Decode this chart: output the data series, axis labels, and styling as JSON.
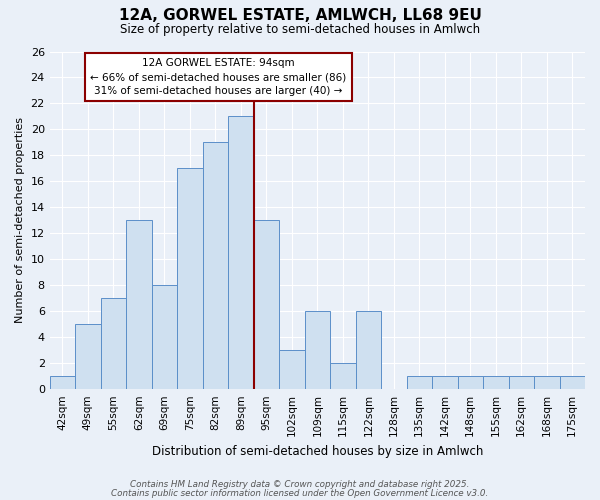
{
  "title": "12A, GORWEL ESTATE, AMLWCH, LL68 9EU",
  "subtitle": "Size of property relative to semi-detached houses in Amlwch",
  "xlabel": "Distribution of semi-detached houses by size in Amlwch",
  "ylabel": "Number of semi-detached properties",
  "categories": [
    "42sqm",
    "49sqm",
    "55sqm",
    "62sqm",
    "69sqm",
    "75sqm",
    "82sqm",
    "89sqm",
    "95sqm",
    "102sqm",
    "109sqm",
    "115sqm",
    "122sqm",
    "128sqm",
    "135sqm",
    "142sqm",
    "148sqm",
    "155sqm",
    "162sqm",
    "168sqm",
    "175sqm"
  ],
  "values": [
    1,
    5,
    7,
    13,
    8,
    17,
    19,
    21,
    13,
    3,
    6,
    2,
    6,
    0,
    1,
    1,
    1,
    1,
    1,
    1,
    1
  ],
  "bar_color": "#cfe0f0",
  "bar_edge_color": "#5b8fc9",
  "property_line_color": "#8b0000",
  "ylim": [
    0,
    26
  ],
  "yticks": [
    0,
    2,
    4,
    6,
    8,
    10,
    12,
    14,
    16,
    18,
    20,
    22,
    24,
    26
  ],
  "annotation_title": "12A GORWEL ESTATE: 94sqm",
  "annotation_line1": "← 66% of semi-detached houses are smaller (86)",
  "annotation_line2": "31% of semi-detached houses are larger (40) →",
  "annotation_box_color": "#ffffff",
  "annotation_box_edge_color": "#8b0000",
  "footer1": "Contains HM Land Registry data © Crown copyright and database right 2025.",
  "footer2": "Contains public sector information licensed under the Open Government Licence v3.0.",
  "bg_color": "#eaf0f8",
  "grid_color": "#ffffff"
}
